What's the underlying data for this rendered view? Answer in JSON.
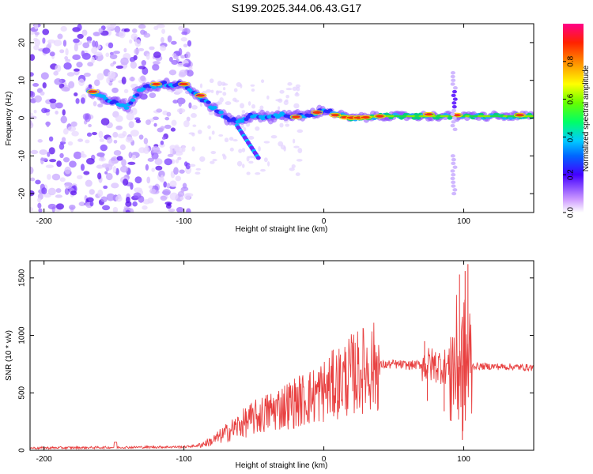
{
  "title": "S199.2025.344.06.43.G17",
  "chart_data": [
    {
      "type": "heatmap",
      "name": "spectrogram",
      "xlabel": "Height of straight line (km)",
      "ylabel": "Frequency (Hz)",
      "xlim": [
        -210,
        150
      ],
      "ylim": [
        -25,
        25
      ],
      "xticks": [
        "-200",
        "-100",
        "0",
        "100"
      ],
      "yticks": [
        "-20",
        "-10",
        "0",
        "10",
        "20"
      ],
      "colorbar": {
        "label": "Normalized spectral amplitude",
        "range": [
          0,
          1
        ],
        "ticks": [
          "0.0",
          "0.2",
          "0.4",
          "0.6",
          "0.8"
        ]
      },
      "ridge": [
        {
          "x": -168,
          "f": 7
        },
        {
          "x": -155,
          "f": 5
        },
        {
          "x": -140,
          "f": 3
        },
        {
          "x": -130,
          "f": 8
        },
        {
          "x": -115,
          "f": 9
        },
        {
          "x": -100,
          "f": 9
        },
        {
          "x": -90,
          "f": 6
        },
        {
          "x": -80,
          "f": 3
        },
        {
          "x": -70,
          "f": 0
        },
        {
          "x": -60,
          "f": -1
        },
        {
          "x": -50,
          "f": 1
        },
        {
          "x": -40,
          "f": 0
        },
        {
          "x": -30,
          "f": 1
        },
        {
          "x": -20,
          "f": 0.5
        },
        {
          "x": -10,
          "f": 1
        },
        {
          "x": 0,
          "f": 2
        },
        {
          "x": 10,
          "f": 1
        },
        {
          "x": 20,
          "f": 0
        },
        {
          "x": 40,
          "f": 0.5
        },
        {
          "x": 60,
          "f": 0.5
        },
        {
          "x": 80,
          "f": 0.5
        },
        {
          "x": 90,
          "f": 0.5
        },
        {
          "x": 100,
          "f": 0.5
        },
        {
          "x": 120,
          "f": 0.5
        },
        {
          "x": 150,
          "f": 0.5
        }
      ]
    },
    {
      "type": "line",
      "name": "snr",
      "xlabel": "Height of straight line (km)",
      "ylabel": "SNR (10 * v/v)",
      "xlim": [
        -210,
        150
      ],
      "ylim": [
        0,
        1650
      ],
      "xticks": [
        "-200",
        "-100",
        "0",
        "100"
      ],
      "yticks": [
        "0",
        "500",
        "1000",
        "1500"
      ],
      "color": "#e84040",
      "envelope": [
        {
          "x": -210,
          "y": 20
        },
        {
          "x": -150,
          "y": 25
        },
        {
          "x": -100,
          "y": 30
        },
        {
          "x": -90,
          "y": 40
        },
        {
          "x": -80,
          "y": 80
        },
        {
          "x": -70,
          "y": 150
        },
        {
          "x": -60,
          "y": 220
        },
        {
          "x": -50,
          "y": 280
        },
        {
          "x": -40,
          "y": 330
        },
        {
          "x": -30,
          "y": 380
        },
        {
          "x": -20,
          "y": 420
        },
        {
          "x": -10,
          "y": 460
        },
        {
          "x": 0,
          "y": 520
        },
        {
          "x": 10,
          "y": 590
        },
        {
          "x": 20,
          "y": 660
        },
        {
          "x": 30,
          "y": 710
        },
        {
          "x": 40,
          "y": 740
        },
        {
          "x": 50,
          "y": 750
        },
        {
          "x": 60,
          "y": 740
        },
        {
          "x": 70,
          "y": 745
        },
        {
          "x": 80,
          "y": 740
        },
        {
          "x": 90,
          "y": 730
        },
        {
          "x": 100,
          "y": 740
        },
        {
          "x": 110,
          "y": 730
        },
        {
          "x": 120,
          "y": 730
        },
        {
          "x": 150,
          "y": 720
        }
      ],
      "spikes": [
        {
          "x": 97,
          "y": 1530
        },
        {
          "x": 101,
          "y": 1560
        },
        {
          "x": 103,
          "y": 1620
        },
        {
          "x": 99,
          "y": 90
        },
        {
          "x": 74,
          "y": 430
        },
        {
          "x": 86,
          "y": 340
        },
        {
          "x": 72,
          "y": 950
        }
      ]
    }
  ]
}
